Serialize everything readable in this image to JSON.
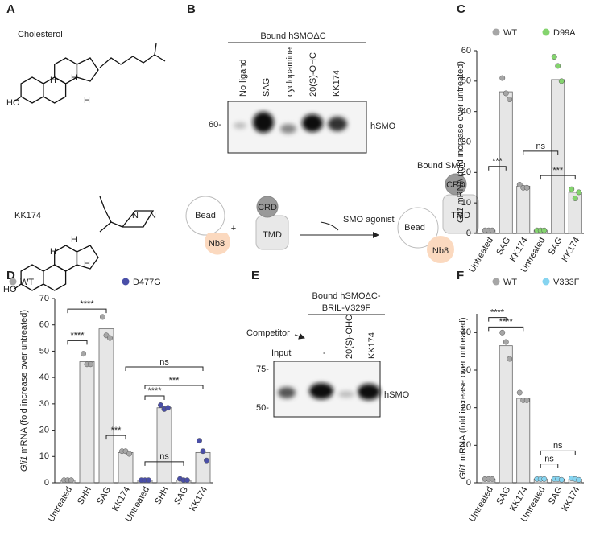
{
  "panel_labels": [
    "A",
    "B",
    "C",
    "D",
    "E",
    "F"
  ],
  "panel_a": {
    "molecules": [
      "Cholesterol",
      "KK174"
    ],
    "hydroxyl": "HO",
    "hydrogen": "H",
    "nitrogen": "N"
  },
  "panel_b": {
    "header": "Bound hSMOΔC",
    "lanes": [
      "No ligand",
      "SAG",
      "cyclopamine",
      "20(S)-OHC",
      "KK174"
    ],
    "marker": "60-",
    "band": "hSMO",
    "schematic": {
      "bead": "Bead",
      "nanobody": "Nb8",
      "crd": "CRD",
      "tmd": "TMD",
      "plus": "+",
      "arrow": "SMO agonist",
      "product": "Bound SMO"
    }
  },
  "panel_e": {
    "header": [
      "Bound hSMOΔC-",
      "BRIL-V329F"
    ],
    "competitor": "Competitor",
    "lanes": [
      "Input",
      "'",
      "20(S)-OHC",
      "KK174"
    ],
    "markers": [
      "75-",
      "50-"
    ],
    "band": "hSMO"
  },
  "chart_data": [
    {
      "type": "bar",
      "ylabel_gene": "Gli1",
      "ylabel": "mRNA (fold increase over untreated)",
      "categories": [
        "Untreated",
        "SAG",
        "KK174",
        "Untreated",
        "SAG",
        "KK174"
      ],
      "bar_color": "#e6e6e6",
      "series": [
        {
          "name": "WT",
          "color": "#a6a6a6",
          "values": [
            1,
            46.5,
            15.5,
            null,
            null,
            null
          ],
          "replicates": [
            [
              1,
              1,
              1
            ],
            [
              51,
              46,
              44
            ],
            [
              16,
              15,
              15
            ],
            null,
            null,
            null
          ]
        },
        {
          "name": "D99A",
          "color": "#84d46e",
          "values": [
            null,
            null,
            null,
            1,
            50.5,
            13.5
          ],
          "replicates": [
            null,
            null,
            null,
            [
              1,
              1,
              1
            ],
            [
              58,
              55,
              50
            ],
            [
              14.5,
              11.5,
              13.5
            ]
          ]
        }
      ],
      "ylim": [
        0,
        60
      ],
      "yticks": [
        0,
        10,
        20,
        30,
        40,
        50,
        60
      ],
      "annotations": [
        "***",
        "ns",
        "***"
      ]
    },
    {
      "type": "bar",
      "ylabel_gene": "Gli1",
      "ylabel": "mRNA (fold increase over untreated)",
      "categories": [
        "Untreated",
        "SHH",
        "SAG",
        "KK174",
        "Untreated",
        "SHH",
        "SAG",
        "KK174"
      ],
      "bar_color": "#e6e6e6",
      "series": [
        {
          "name": "WT",
          "color": "#a6a6a6",
          "values": [
            1,
            46,
            58.5,
            11.5,
            null,
            null,
            null,
            null
          ],
          "replicates": [
            [
              1,
              1,
              1
            ],
            [
              49,
              45,
              45
            ],
            [
              63,
              56,
              55
            ],
            [
              12,
              12,
              11
            ],
            null,
            null,
            null,
            null
          ]
        },
        {
          "name": "D477G",
          "color": "#4a4fa8",
          "values": [
            null,
            null,
            null,
            null,
            1,
            28.5,
            1,
            11.5
          ],
          "replicates": [
            null,
            null,
            null,
            null,
            [
              1,
              1,
              1
            ],
            [
              29.5,
              28,
              28.5
            ],
            [
              1.5,
              1,
              1
            ],
            [
              16,
              12,
              8.5
            ]
          ]
        }
      ],
      "ylim": [
        0,
        70
      ],
      "yticks": [
        0,
        10,
        20,
        30,
        40,
        50,
        60,
        70
      ],
      "annotations": [
        "****",
        "****",
        "***",
        "ns",
        "****",
        "ns",
        "***"
      ]
    },
    {
      "type": "bar",
      "ylabel_gene": "Gli1",
      "ylabel": "mRNA (fold increase over untreated)",
      "categories": [
        "Untreated",
        "SAG",
        "KK174",
        "Untreated",
        "SAG",
        "KK174"
      ],
      "bar_color": "#e6e6e6",
      "series": [
        {
          "name": "WT",
          "color": "#a6a6a6",
          "values": [
            1,
            36.5,
            22.5,
            null,
            null,
            null
          ],
          "replicates": [
            [
              1,
              1,
              1
            ],
            [
              40,
              37.5,
              33
            ],
            [
              24,
              22,
              22
            ],
            null,
            null,
            null
          ]
        },
        {
          "name": "V333F",
          "color": "#86d4f0",
          "values": [
            null,
            null,
            null,
            1,
            1,
            1
          ],
          "replicates": [
            null,
            null,
            null,
            [
              1,
              1,
              1
            ],
            [
              1,
              1,
              0.8
            ],
            [
              1.2,
              1,
              0.8
            ]
          ]
        }
      ],
      "ylim": [
        0,
        45
      ],
      "yticks": [
        0,
        10,
        20,
        30,
        40
      ],
      "annotations": [
        "****",
        "****",
        "ns",
        "ns"
      ]
    }
  ]
}
